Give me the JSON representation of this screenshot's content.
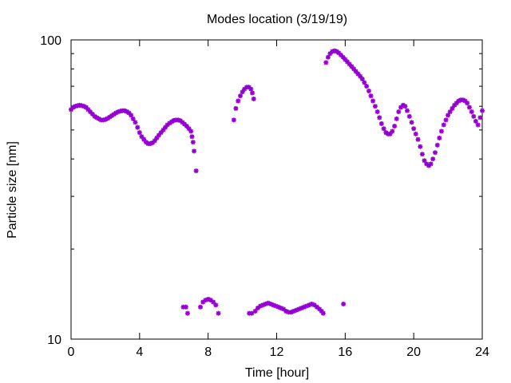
{
  "chart_data": {
    "type": "scatter",
    "title": "Modes location (3/19/19)",
    "xlabel": "Time [hour]",
    "ylabel": "Particle size [nm]",
    "xlim": [
      0,
      24
    ],
    "ylim": [
      10,
      100
    ],
    "yscale": "log",
    "xticks": [
      0,
      4,
      8,
      12,
      16,
      20,
      24
    ],
    "yticks": [
      10,
      100
    ],
    "grid": false,
    "legend": "none",
    "marker_color": "#9400d3",
    "series": [
      {
        "points": [
          [
            0.0,
            58.5
          ],
          [
            0.12,
            59.5
          ],
          [
            0.25,
            60.0
          ],
          [
            0.38,
            60.3
          ],
          [
            0.5,
            60.5
          ],
          [
            0.62,
            60.3
          ],
          [
            0.75,
            60.0
          ],
          [
            0.88,
            59.5
          ],
          [
            1.0,
            58.5
          ],
          [
            1.12,
            57.5
          ],
          [
            1.25,
            56.5
          ],
          [
            1.38,
            55.5
          ],
          [
            1.5,
            55.0
          ],
          [
            1.62,
            54.5
          ],
          [
            1.75,
            54.0
          ],
          [
            1.88,
            54.0
          ],
          [
            2.0,
            54.2
          ],
          [
            2.12,
            54.6
          ],
          [
            2.25,
            55.2
          ],
          [
            2.38,
            55.8
          ],
          [
            2.5,
            56.4
          ],
          [
            2.62,
            57.0
          ],
          [
            2.75,
            57.5
          ],
          [
            2.88,
            57.8
          ],
          [
            3.0,
            58.0
          ],
          [
            3.12,
            58.0
          ],
          [
            3.25,
            57.6
          ],
          [
            3.38,
            57.0
          ],
          [
            3.5,
            56.0
          ],
          [
            3.62,
            54.5
          ],
          [
            3.75,
            53.0
          ],
          [
            3.88,
            51.0
          ],
          [
            4.0,
            49.0
          ],
          [
            4.12,
            47.5
          ],
          [
            4.25,
            46.5
          ],
          [
            4.38,
            45.5
          ],
          [
            4.5,
            45.0
          ],
          [
            4.62,
            45.0
          ],
          [
            4.75,
            45.3
          ],
          [
            4.88,
            46.0
          ],
          [
            5.0,
            47.0
          ],
          [
            5.12,
            48.0
          ],
          [
            5.25,
            49.0
          ],
          [
            5.38,
            50.0
          ],
          [
            5.5,
            51.0
          ],
          [
            5.62,
            52.0
          ],
          [
            5.75,
            52.7
          ],
          [
            5.88,
            53.3
          ],
          [
            6.0,
            53.8
          ],
          [
            6.12,
            54.0
          ],
          [
            6.25,
            54.0
          ],
          [
            6.38,
            53.7
          ],
          [
            6.5,
            53.0
          ],
          [
            6.62,
            52.3
          ],
          [
            6.75,
            51.5
          ],
          [
            6.88,
            50.5
          ],
          [
            7.0,
            49.5
          ],
          [
            7.06,
            47.5
          ],
          [
            7.12,
            45.5
          ],
          [
            7.18,
            42.5
          ],
          [
            7.3,
            36.5
          ],
          [
            6.55,
            12.8
          ],
          [
            6.7,
            12.8
          ],
          [
            6.8,
            12.2
          ],
          [
            7.55,
            12.8
          ],
          [
            7.7,
            13.3
          ],
          [
            7.85,
            13.5
          ],
          [
            8.0,
            13.6
          ],
          [
            8.15,
            13.5
          ],
          [
            8.3,
            13.3
          ],
          [
            8.45,
            13.0
          ],
          [
            8.6,
            12.2
          ],
          [
            9.5,
            54.0
          ],
          [
            9.62,
            59.0
          ],
          [
            9.75,
            62.5
          ],
          [
            9.88,
            65.0
          ],
          [
            10.0,
            67.0
          ],
          [
            10.12,
            68.5
          ],
          [
            10.25,
            69.5
          ],
          [
            10.38,
            69.5
          ],
          [
            10.5,
            68.5
          ],
          [
            10.58,
            66.5
          ],
          [
            10.66,
            63.5
          ],
          [
            10.4,
            12.2
          ],
          [
            10.55,
            12.2
          ],
          [
            10.75,
            12.4
          ],
          [
            10.9,
            12.7
          ],
          [
            11.05,
            12.9
          ],
          [
            11.2,
            13.0
          ],
          [
            11.35,
            13.1
          ],
          [
            11.5,
            13.2
          ],
          [
            11.65,
            13.1
          ],
          [
            11.8,
            13.0
          ],
          [
            11.95,
            12.9
          ],
          [
            12.1,
            12.8
          ],
          [
            12.25,
            12.7
          ],
          [
            12.4,
            12.6
          ],
          [
            12.55,
            12.4
          ],
          [
            12.7,
            12.3
          ],
          [
            12.85,
            12.3
          ],
          [
            13.0,
            12.4
          ],
          [
            13.15,
            12.5
          ],
          [
            13.3,
            12.6
          ],
          [
            13.45,
            12.7
          ],
          [
            13.6,
            12.8
          ],
          [
            13.75,
            12.9
          ],
          [
            13.9,
            13.0
          ],
          [
            14.05,
            13.1
          ],
          [
            14.2,
            13.0
          ],
          [
            14.35,
            12.8
          ],
          [
            14.5,
            12.6
          ],
          [
            14.62,
            12.4
          ],
          [
            14.72,
            12.2
          ],
          [
            15.9,
            13.1
          ],
          [
            14.88,
            84.0
          ],
          [
            15.0,
            87.5
          ],
          [
            15.12,
            90.0
          ],
          [
            15.25,
            91.5
          ],
          [
            15.38,
            92.0
          ],
          [
            15.5,
            91.5
          ],
          [
            15.62,
            90.5
          ],
          [
            15.75,
            89.0
          ],
          [
            15.88,
            87.5
          ],
          [
            16.0,
            86.0
          ],
          [
            16.12,
            84.5
          ],
          [
            16.25,
            83.0
          ],
          [
            16.38,
            81.5
          ],
          [
            16.5,
            80.0
          ],
          [
            16.62,
            78.5
          ],
          [
            16.75,
            77.0
          ],
          [
            16.88,
            75.5
          ],
          [
            17.0,
            74.0
          ],
          [
            17.12,
            72.0
          ],
          [
            17.25,
            70.0
          ],
          [
            17.38,
            67.5
          ],
          [
            17.5,
            65.0
          ],
          [
            17.62,
            62.5
          ],
          [
            17.75,
            60.0
          ],
          [
            17.88,
            57.5
          ],
          [
            18.0,
            55.0
          ],
          [
            18.12,
            52.5
          ],
          [
            18.25,
            50.5
          ],
          [
            18.38,
            49.0
          ],
          [
            18.5,
            48.5
          ],
          [
            18.62,
            48.5
          ],
          [
            18.75,
            49.5
          ],
          [
            18.88,
            51.5
          ],
          [
            19.0,
            54.5
          ],
          [
            19.12,
            57.5
          ],
          [
            19.25,
            59.5
          ],
          [
            19.38,
            60.5
          ],
          [
            19.5,
            60.0
          ],
          [
            19.62,
            58.0
          ],
          [
            19.75,
            55.5
          ],
          [
            19.88,
            53.0
          ],
          [
            20.0,
            50.5
          ],
          [
            20.12,
            48.5
          ],
          [
            20.25,
            46.5
          ],
          [
            20.38,
            44.0
          ],
          [
            20.5,
            41.5
          ],
          [
            20.62,
            39.5
          ],
          [
            20.75,
            38.5
          ],
          [
            20.88,
            38.0
          ],
          [
            21.0,
            38.5
          ],
          [
            21.12,
            40.0
          ],
          [
            21.25,
            42.0
          ],
          [
            21.38,
            44.5
          ],
          [
            21.5,
            47.0
          ],
          [
            21.62,
            49.5
          ],
          [
            21.75,
            52.0
          ],
          [
            21.88,
            54.0
          ],
          [
            22.0,
            56.0
          ],
          [
            22.12,
            57.5
          ],
          [
            22.25,
            59.0
          ],
          [
            22.38,
            60.5
          ],
          [
            22.5,
            61.5
          ],
          [
            22.62,
            62.5
          ],
          [
            22.75,
            63.0
          ],
          [
            22.88,
            63.0
          ],
          [
            23.0,
            62.5
          ],
          [
            23.12,
            61.5
          ],
          [
            23.25,
            59.5
          ],
          [
            23.38,
            57.5
          ],
          [
            23.5,
            55.5
          ],
          [
            23.62,
            53.5
          ],
          [
            23.75,
            52.0
          ],
          [
            23.88,
            55.0
          ],
          [
            24.0,
            58.0
          ]
        ]
      }
    ]
  }
}
